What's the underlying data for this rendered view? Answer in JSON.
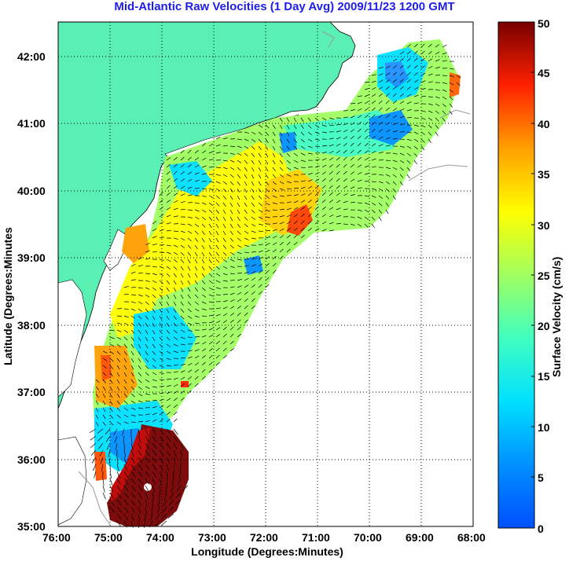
{
  "title": "Mid-Atlantic Raw Velocities (1 Day Avg) 2009/11/23 1200 GMT",
  "x_axis_label": "Longitude (Degrees:Minutes)",
  "y_axis_label": "Latitude (Degrees:Minutes",
  "x_ticks": [
    "76:00",
    "75:00",
    "74:00",
    "73:00",
    "72:00",
    "71:00",
    "70:00",
    "69:00",
    "68:00"
  ],
  "y_ticks": [
    "42:00",
    "41:00",
    "40:00",
    "39:00",
    "38:00",
    "37:00",
    "36:00",
    "35:00"
  ],
  "colorbar": {
    "label": "Surface Velocity (cm/s)",
    "ticks": [
      "50",
      "45",
      "40",
      "35",
      "30",
      "25",
      "20",
      "15",
      "10",
      "5",
      "0"
    ],
    "range": [
      0,
      50
    ],
    "colormap": "jet"
  },
  "colors": {
    "title": "#1e1ee6",
    "land": "#5af0b4",
    "grid": "#000000",
    "bathymetry": "#9a9a9a"
  },
  "map": {
    "lon_range": [
      -76,
      -68
    ],
    "lat_range": [
      35,
      42.5
    ],
    "grid": "dotted"
  }
}
